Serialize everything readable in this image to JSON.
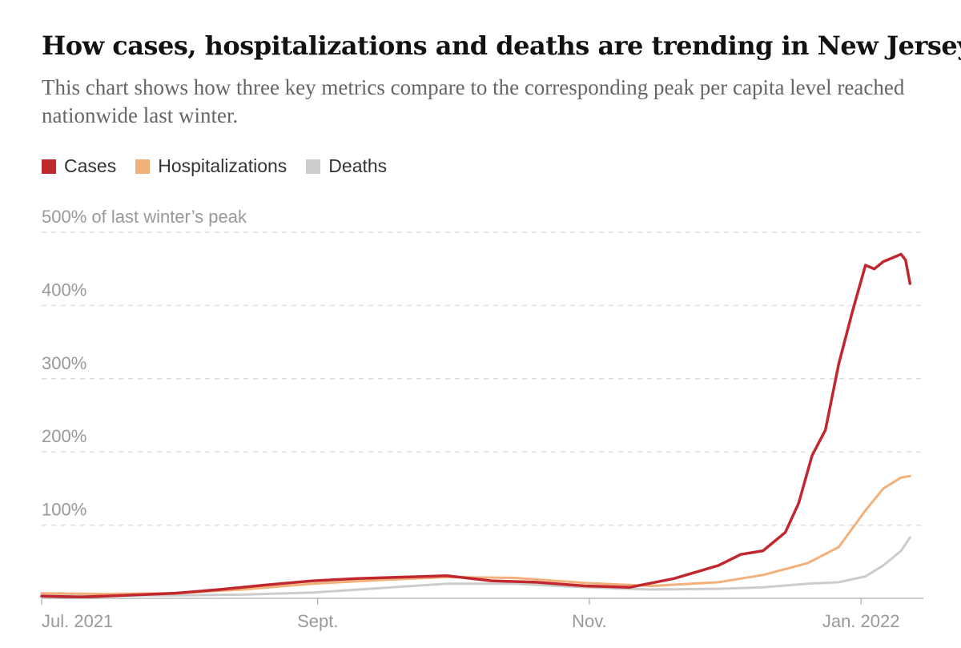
{
  "title": "How cases, hospitalizations and deaths are trending in New Jersey",
  "subtitle": "This chart shows how three key metrics compare to the corresponding peak per capita level reached nationwide last winter.",
  "chart_data": {
    "type": "line",
    "x_start_date": "2021-07-01",
    "x_end_date": "2022-01-15",
    "ylim": [
      0,
      500
    ],
    "y_ticks": [
      100,
      200,
      300,
      400,
      500
    ],
    "y_tick_labels": [
      "100%",
      "200%",
      "300%",
      "400%",
      "500% of last winter’s peak"
    ],
    "x_ticks": [
      {
        "label": "Jul. 2021",
        "date": "2021-07-01"
      },
      {
        "label": "Sept.",
        "date": "2021-09-01"
      },
      {
        "label": "Nov.",
        "date": "2021-11-01"
      },
      {
        "label": "Jan. 2022",
        "date": "2022-01-01"
      }
    ],
    "grid": true,
    "legend_position": "top-left",
    "series": [
      {
        "name": "Cases",
        "color": "#c0282d",
        "points": [
          [
            "2021-07-01",
            3
          ],
          [
            "2021-07-10",
            2
          ],
          [
            "2021-07-20",
            4
          ],
          [
            "2021-07-31",
            7
          ],
          [
            "2021-08-10",
            12
          ],
          [
            "2021-08-20",
            18
          ],
          [
            "2021-08-31",
            24
          ],
          [
            "2021-09-10",
            27
          ],
          [
            "2021-09-20",
            29
          ],
          [
            "2021-09-30",
            31
          ],
          [
            "2021-10-10",
            24
          ],
          [
            "2021-10-20",
            22
          ],
          [
            "2021-10-31",
            17
          ],
          [
            "2021-11-10",
            15
          ],
          [
            "2021-11-20",
            27
          ],
          [
            "2021-11-30",
            45
          ],
          [
            "2021-12-05",
            60
          ],
          [
            "2021-12-10",
            65
          ],
          [
            "2021-12-15",
            90
          ],
          [
            "2021-12-18",
            130
          ],
          [
            "2021-12-21",
            195
          ],
          [
            "2021-12-24",
            230
          ],
          [
            "2021-12-27",
            320
          ],
          [
            "2021-12-30",
            390
          ],
          [
            "2022-01-02",
            455
          ],
          [
            "2022-01-04",
            450
          ],
          [
            "2022-01-06",
            460
          ],
          [
            "2022-01-08",
            465
          ],
          [
            "2022-01-10",
            470
          ],
          [
            "2022-01-11",
            462
          ],
          [
            "2022-01-12",
            430
          ]
        ]
      },
      {
        "name": "Hospitalizations",
        "color": "#f2b07a",
        "points": [
          [
            "2021-07-01",
            7
          ],
          [
            "2021-07-15",
            6
          ],
          [
            "2021-07-31",
            7
          ],
          [
            "2021-08-15",
            12
          ],
          [
            "2021-08-31",
            20
          ],
          [
            "2021-09-15",
            25
          ],
          [
            "2021-09-30",
            29
          ],
          [
            "2021-10-15",
            28
          ],
          [
            "2021-10-31",
            21
          ],
          [
            "2021-11-15",
            17
          ],
          [
            "2021-11-30",
            22
          ],
          [
            "2021-12-10",
            32
          ],
          [
            "2021-12-20",
            48
          ],
          [
            "2021-12-27",
            70
          ],
          [
            "2022-01-02",
            120
          ],
          [
            "2022-01-06",
            150
          ],
          [
            "2022-01-10",
            165
          ],
          [
            "2022-01-12",
            167
          ]
        ]
      },
      {
        "name": "Deaths",
        "color": "#cccccc",
        "points": [
          [
            "2021-07-01",
            5
          ],
          [
            "2021-07-15",
            4
          ],
          [
            "2021-07-31",
            4
          ],
          [
            "2021-08-15",
            5
          ],
          [
            "2021-08-31",
            8
          ],
          [
            "2021-09-15",
            14
          ],
          [
            "2021-09-30",
            20
          ],
          [
            "2021-10-15",
            20
          ],
          [
            "2021-10-31",
            15
          ],
          [
            "2021-11-15",
            12
          ],
          [
            "2021-11-30",
            13
          ],
          [
            "2021-12-10",
            15
          ],
          [
            "2021-12-20",
            20
          ],
          [
            "2021-12-27",
            22
          ],
          [
            "2022-01-02",
            30
          ],
          [
            "2022-01-06",
            45
          ],
          [
            "2022-01-10",
            65
          ],
          [
            "2022-01-12",
            83
          ]
        ]
      }
    ]
  }
}
